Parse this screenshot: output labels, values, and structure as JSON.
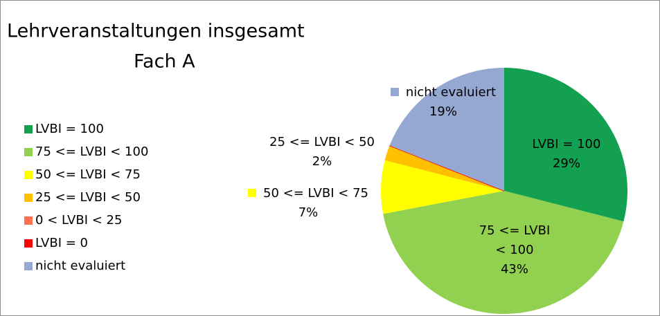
{
  "chart_data": {
    "type": "pie",
    "title": "Lehrveranstaltungen insgesamt",
    "subtitle": "Fach A",
    "categories": [
      "LVBI = 100",
      "75 <= LVBI < 100",
      "50 <= LVBI < 75",
      "25 <= LVBI < 50",
      "0 < LVBI < 25",
      "LVBI = 0",
      "nicht evaluiert"
    ],
    "values": [
      29,
      43,
      7,
      2,
      0,
      0,
      19
    ],
    "value_labels": [
      "29%",
      "43%",
      "7%",
      "2%",
      null,
      null,
      "19%"
    ],
    "colors": [
      "#13a050",
      "#92d050",
      "#ffff00",
      "#ffc000",
      "#ff7050",
      "#ff0000",
      "#95a8d2"
    ],
    "legend": "left"
  }
}
